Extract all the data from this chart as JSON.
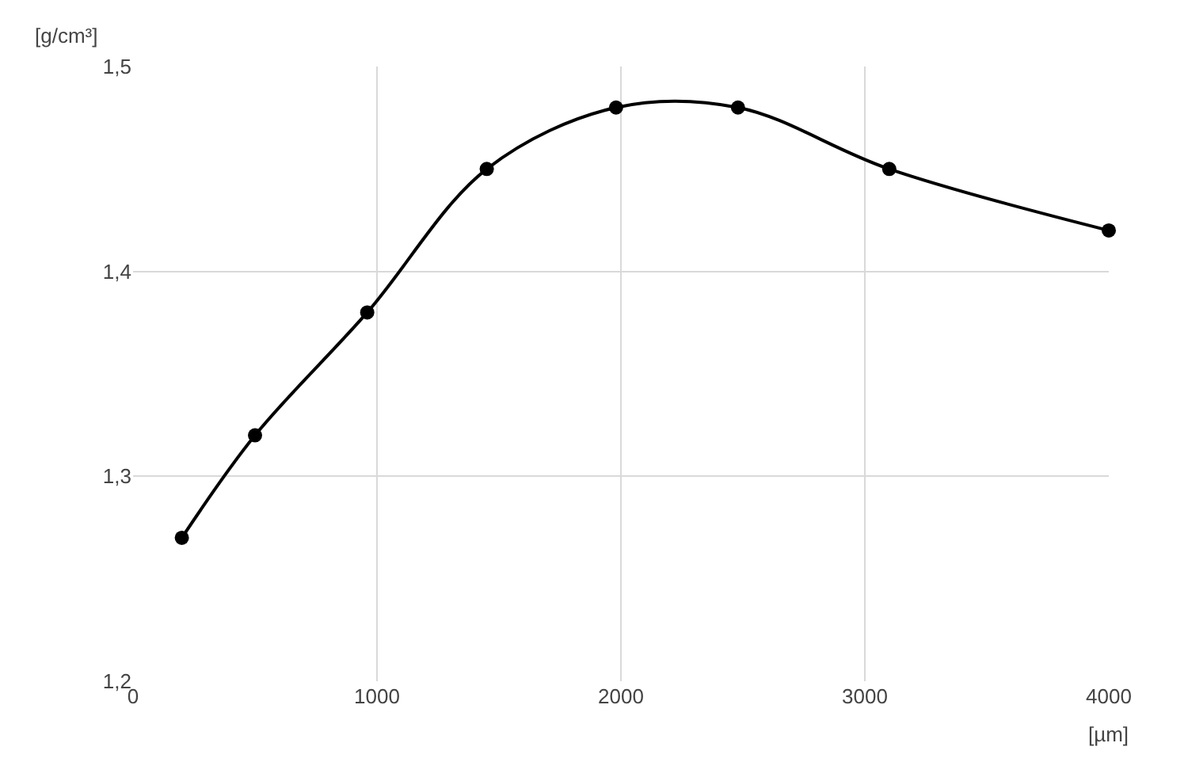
{
  "chart_data": {
    "type": "line",
    "xlabel": "[µm]",
    "ylabel": "[g/cm³]",
    "x": [
      200,
      500,
      960,
      1450,
      1980,
      2480,
      3100,
      4000
    ],
    "series": [
      {
        "color": "#000000",
        "values": [
          1.27,
          1.32,
          1.38,
          1.45,
          1.48,
          1.48,
          1.45,
          1.42
        ]
      }
    ],
    "xlim": [
      0,
      4000
    ],
    "xticks": [
      0,
      1000,
      2000,
      3000,
      4000
    ],
    "ylim": [
      1.2,
      1.5
    ],
    "yticks": [
      {
        "value": 1.2,
        "label": "1,2"
      },
      {
        "value": 1.3,
        "label": "1,3"
      },
      {
        "value": 1.4,
        "label": "1,4"
      },
      {
        "value": 1.5,
        "label": "1,5"
      }
    ],
    "grid": true,
    "marker": "circle",
    "line_style": "solid"
  }
}
